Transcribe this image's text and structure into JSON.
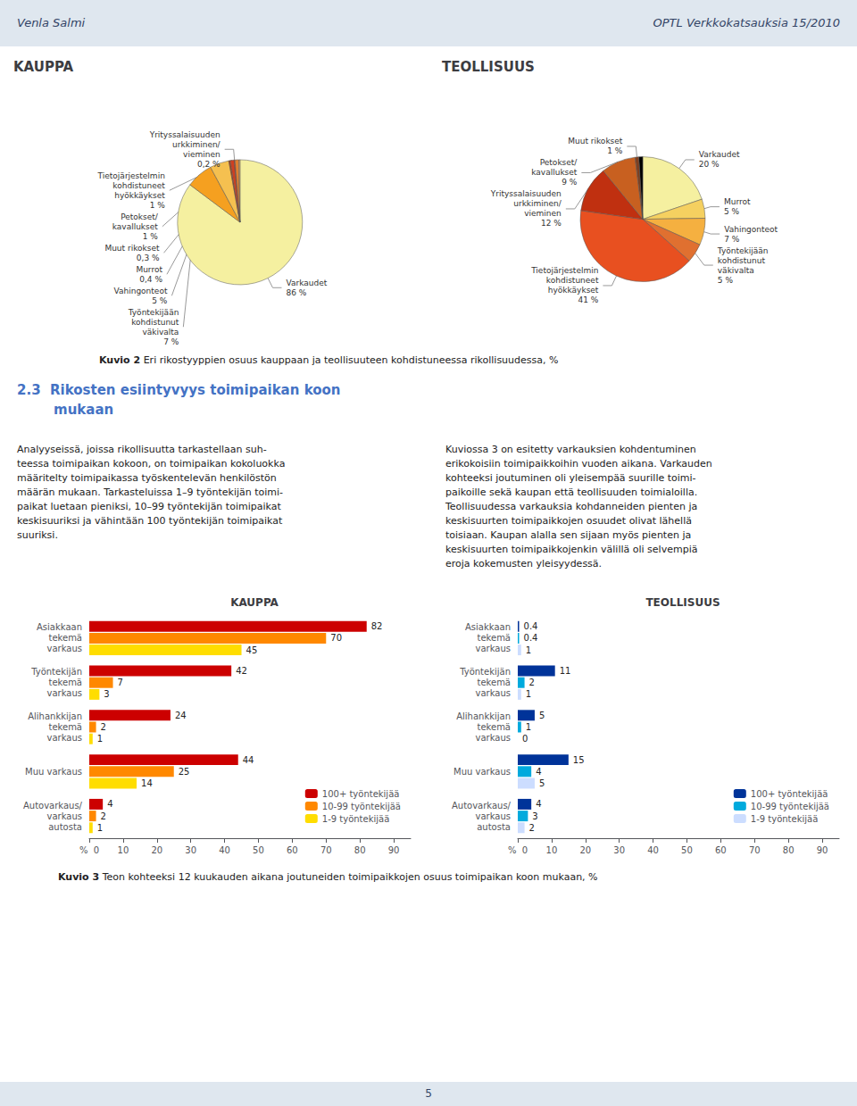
{
  "annotations": [
    "Venla Salmi",
    "OPTL Verkkokatsauksia 15/2010",
    "Kuvio 2",
    " Eri rikostyyppien osuus kauppaan ja teollisuuteen kohdistuneessa rikollisuudessa, %",
    "2.3  Rikosten esiintyvyys toimipaikan koon",
    "mukaan",
    "Analyyseissä, joissa rikollisuutta tarkastellaan suh-\nteessa toimipaikan kokoon, on toimipaikan kokoluokka\nmääritelty toimipaikassa työskentelevän henkilöstön\nmäärän mukaan. Tarkasteluissa 1–9 työntekijän toimi-\npaikat luetaan pieniksi, 10–99 työntekijän toimipaikat\nkeskisuuriksi ja vähintään 100 työntekijän toimipaikat\nsuuriksi.",
    "Kuviossa 3 on esitetty varkauksien kohdentuminen\nerikokoisiin toimipaikkoihin vuoden aikana. Varkauden\nkohteeksi joutuminen oli yleisempää suurille toimi-\npaikoille sekä kaupan että teollisuuden toimialoilla.\nTeollisuudessa varkauksia kohdanneiden pienten ja\nkeskisuurten toimipaikkojen osuudet olivat lähellä\ntoisiaan. Kaupan alalla sen sijaan myös pienten ja\nkeskisuurten toimipaikkojenkin välillä oli selvempiä\neroja kokemusten yleisyydessä.",
    "Kuvio 3",
    " Teon kohteeksi 12 kuukauden aikana joutuneiden toimipaikkojen osuus toimipaikan koon mukaan, %",
    "5"
  ],
  "chart_data": [
    {
      "type": "pie",
      "title": "KAUPPA",
      "categories": [
        "Varkaudet",
        "Työntekijään\nkohdistunut\nväkivalta",
        "Vahingonteot",
        "Murrot",
        "Tietojärjestelmin\nkohdistuneet\nhyökkäykset",
        "Yrityssalaisuuden\nurkkiminen/\nvieminen",
        "Petokset/\nkavallukset",
        "Muut rikokset"
      ],
      "values": [
        86,
        7,
        5,
        0.4,
        1,
        0.2,
        1,
        0.3
      ],
      "value_labels": [
        "86 %",
        "7 %",
        "5 %",
        "0,4 %",
        "1 %",
        "0,2 %",
        "1 %",
        "0,3 %"
      ],
      "colors": [
        "#f5f0a0",
        "#f5a020",
        "#f5c050",
        "#b04010",
        "#d04020",
        "#c03010",
        "#e08030",
        "#e8b060"
      ],
      "data_labels": true
    },
    {
      "type": "pie",
      "title": "TEOLLISUUS",
      "categories": [
        "Varkaudet",
        "Murrot",
        "Vahingonteot",
        "Työntekijään\nkohdistunut\nväkivalta",
        "Tietojärjestelmin\nkohdistuneet\nhyökkäykset",
        "Yrityssalaisuuden\nurkkiminen/\nvieminen",
        "Petokset/\nkavallukset",
        "Muut rikokset",
        null
      ],
      "values": [
        20,
        5,
        7,
        5,
        41,
        12,
        9,
        1,
        1
      ],
      "value_labels": [
        "20 %",
        "5 %",
        "7 %",
        "5 %",
        "41 %",
        "12 %",
        "9 %",
        "1 %",
        null
      ],
      "colors": [
        "#f5f0a0",
        "#f5d060",
        "#f5b040",
        "#e07030",
        "#e85020",
        "#c03010",
        "#c86020",
        "#804020",
        "#000000"
      ],
      "data_labels": true
    },
    {
      "type": "bar",
      "title": "KAUPPA",
      "orientation": "horizontal",
      "categories": [
        "Asiakkaan\ntekemä\nvarkaus",
        "Työntekijän\ntekemä\nvarkaus",
        "Alihankkijan\ntekemä\nvarkaus",
        "Muu varkaus",
        "Autovarkaus/\nvarkaus\nautosta"
      ],
      "series": [
        {
          "name": "100+ työntekijää",
          "color": "#cc0000",
          "values": [
            82,
            42,
            24,
            44,
            4
          ]
        },
        {
          "name": "10-99 työntekijää",
          "color": "#ff8800",
          "values": [
            70,
            7,
            2,
            25,
            2
          ]
        },
        {
          "name": "1-9 työntekijää",
          "color": "#ffdd00",
          "values": [
            45,
            3,
            1,
            14,
            1
          ]
        }
      ],
      "xlim": [
        0,
        95
      ],
      "xticks": [
        {
          "value": 0,
          "label": "%  0"
        },
        10,
        20,
        30,
        40,
        50,
        60,
        70,
        80,
        90
      ],
      "grid": false,
      "legend": "lower right",
      "data_labels": true
    },
    {
      "type": "bar",
      "title": "TEOLLISUUS",
      "orientation": "horizontal",
      "categories": [
        "Asiakkaan\ntekemä\nvarkaus",
        "Työntekijän\ntekemä\nvarkaus",
        "Alihankkijan\ntekemä\nvarkaus",
        "Muu varkaus",
        "Autovarkaus/\nvarkaus\nautosta"
      ],
      "series": [
        {
          "name": "100+ työntekijää",
          "color": "#003399",
          "values": [
            0.4,
            11,
            5,
            15,
            4
          ]
        },
        {
          "name": "10-99 työntekijää",
          "color": "#00aadd",
          "values": [
            0.4,
            2,
            1,
            4,
            3
          ]
        },
        {
          "name": "1-9 työntekijää",
          "color": "#ccddff",
          "values": [
            1,
            1,
            0,
            5,
            2
          ]
        }
      ],
      "xlim": [
        0,
        95
      ],
      "xticks": [
        {
          "value": 0,
          "label": "%  0"
        },
        10,
        20,
        30,
        40,
        50,
        60,
        70,
        80,
        90
      ],
      "grid": false,
      "legend": "lower right",
      "data_labels": true
    }
  ]
}
